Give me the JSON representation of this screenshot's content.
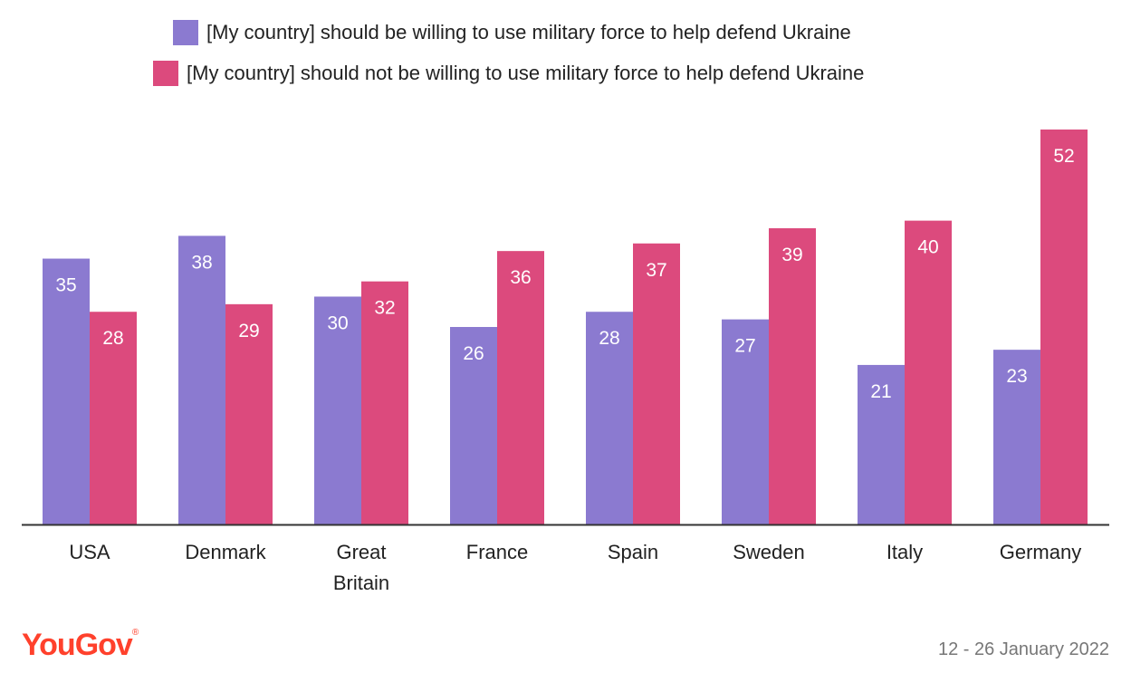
{
  "chart_data": {
    "type": "bar",
    "categories": [
      "USA",
      "Denmark",
      "Great Britain",
      "France",
      "Spain",
      "Sweden",
      "Italy",
      "Germany"
    ],
    "category_lines": [
      [
        "USA"
      ],
      [
        "Denmark"
      ],
      [
        "Great",
        "Britain"
      ],
      [
        "France"
      ],
      [
        "Spain"
      ],
      [
        "Sweden"
      ],
      [
        "Italy"
      ],
      [
        "Germany"
      ]
    ],
    "series": [
      {
        "name": "[My country] should be willing to use military force to help defend Ukraine",
        "color": "#8b7ad0",
        "values": [
          35,
          38,
          30,
          26,
          28,
          27,
          21,
          23
        ]
      },
      {
        "name": "[My country] should not be willing to use military force to help defend Ukraine",
        "color": "#dc4a7d",
        "values": [
          28,
          29,
          32,
          36,
          37,
          39,
          40,
          52
        ]
      }
    ],
    "title": "",
    "xlabel": "",
    "ylabel": "",
    "ylim": [
      0,
      52
    ],
    "grid": false,
    "legend": "top-center"
  },
  "footer": {
    "logo": "YouGov",
    "logo_mark": "®",
    "logo_color": "#ff412c",
    "date": "12 - 26 January 2022"
  }
}
